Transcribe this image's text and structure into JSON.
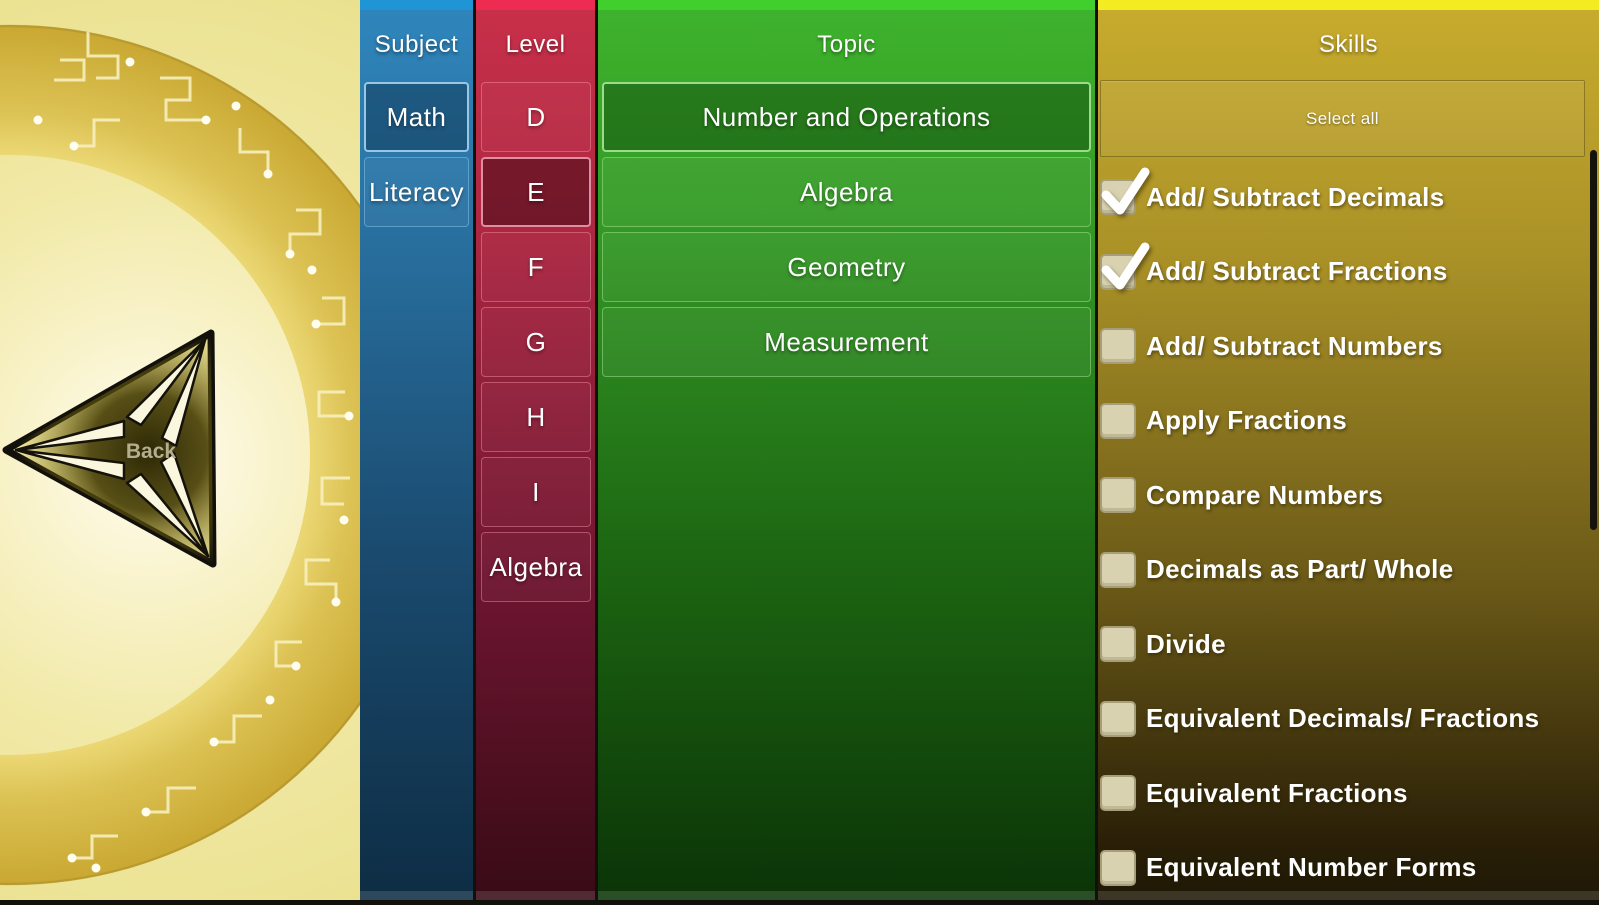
{
  "back_button": {
    "label": "Back"
  },
  "subject_column": {
    "header": "Subject",
    "items": [
      {
        "label": "Math",
        "selected": true
      },
      {
        "label": "Literacy",
        "selected": false
      }
    ]
  },
  "level_column": {
    "header": "Level",
    "items": [
      {
        "label": "D",
        "selected": false
      },
      {
        "label": "E",
        "selected": true
      },
      {
        "label": "F",
        "selected": false
      },
      {
        "label": "G",
        "selected": false
      },
      {
        "label": "H",
        "selected": false
      },
      {
        "label": "I",
        "selected": false
      },
      {
        "label": "Algebra",
        "selected": false
      }
    ]
  },
  "topic_column": {
    "header": "Topic",
    "items": [
      {
        "label": "Number and Operations",
        "selected": true
      },
      {
        "label": "Algebra",
        "selected": false
      },
      {
        "label": "Geometry",
        "selected": false
      },
      {
        "label": "Measurement",
        "selected": false
      }
    ]
  },
  "skills_column": {
    "header": "Skills",
    "select_all_label": "Select all",
    "items": [
      {
        "label": "Add/ Subtract Decimals",
        "checked": true
      },
      {
        "label": "Add/ Subtract Fractions",
        "checked": true
      },
      {
        "label": "Add/ Subtract Numbers",
        "checked": false
      },
      {
        "label": "Apply Fractions",
        "checked": false
      },
      {
        "label": "Compare Numbers",
        "checked": false
      },
      {
        "label": "Decimals as Part/ Whole",
        "checked": false
      },
      {
        "label": "Divide",
        "checked": false
      },
      {
        "label": "Equivalent Decimals/ Fractions",
        "checked": false
      },
      {
        "label": "Equivalent Fractions",
        "checked": false
      },
      {
        "label": "Equivalent Number Forms",
        "checked": false
      }
    ]
  },
  "colors": {
    "subject_accent": "#2095d6",
    "level_accent": "#ee2b51",
    "topic_accent": "#41cf2e",
    "skills_accent": "#f4ec22",
    "checkbox_fill": "#d9d2b0",
    "check_color": "#ffffff"
  }
}
